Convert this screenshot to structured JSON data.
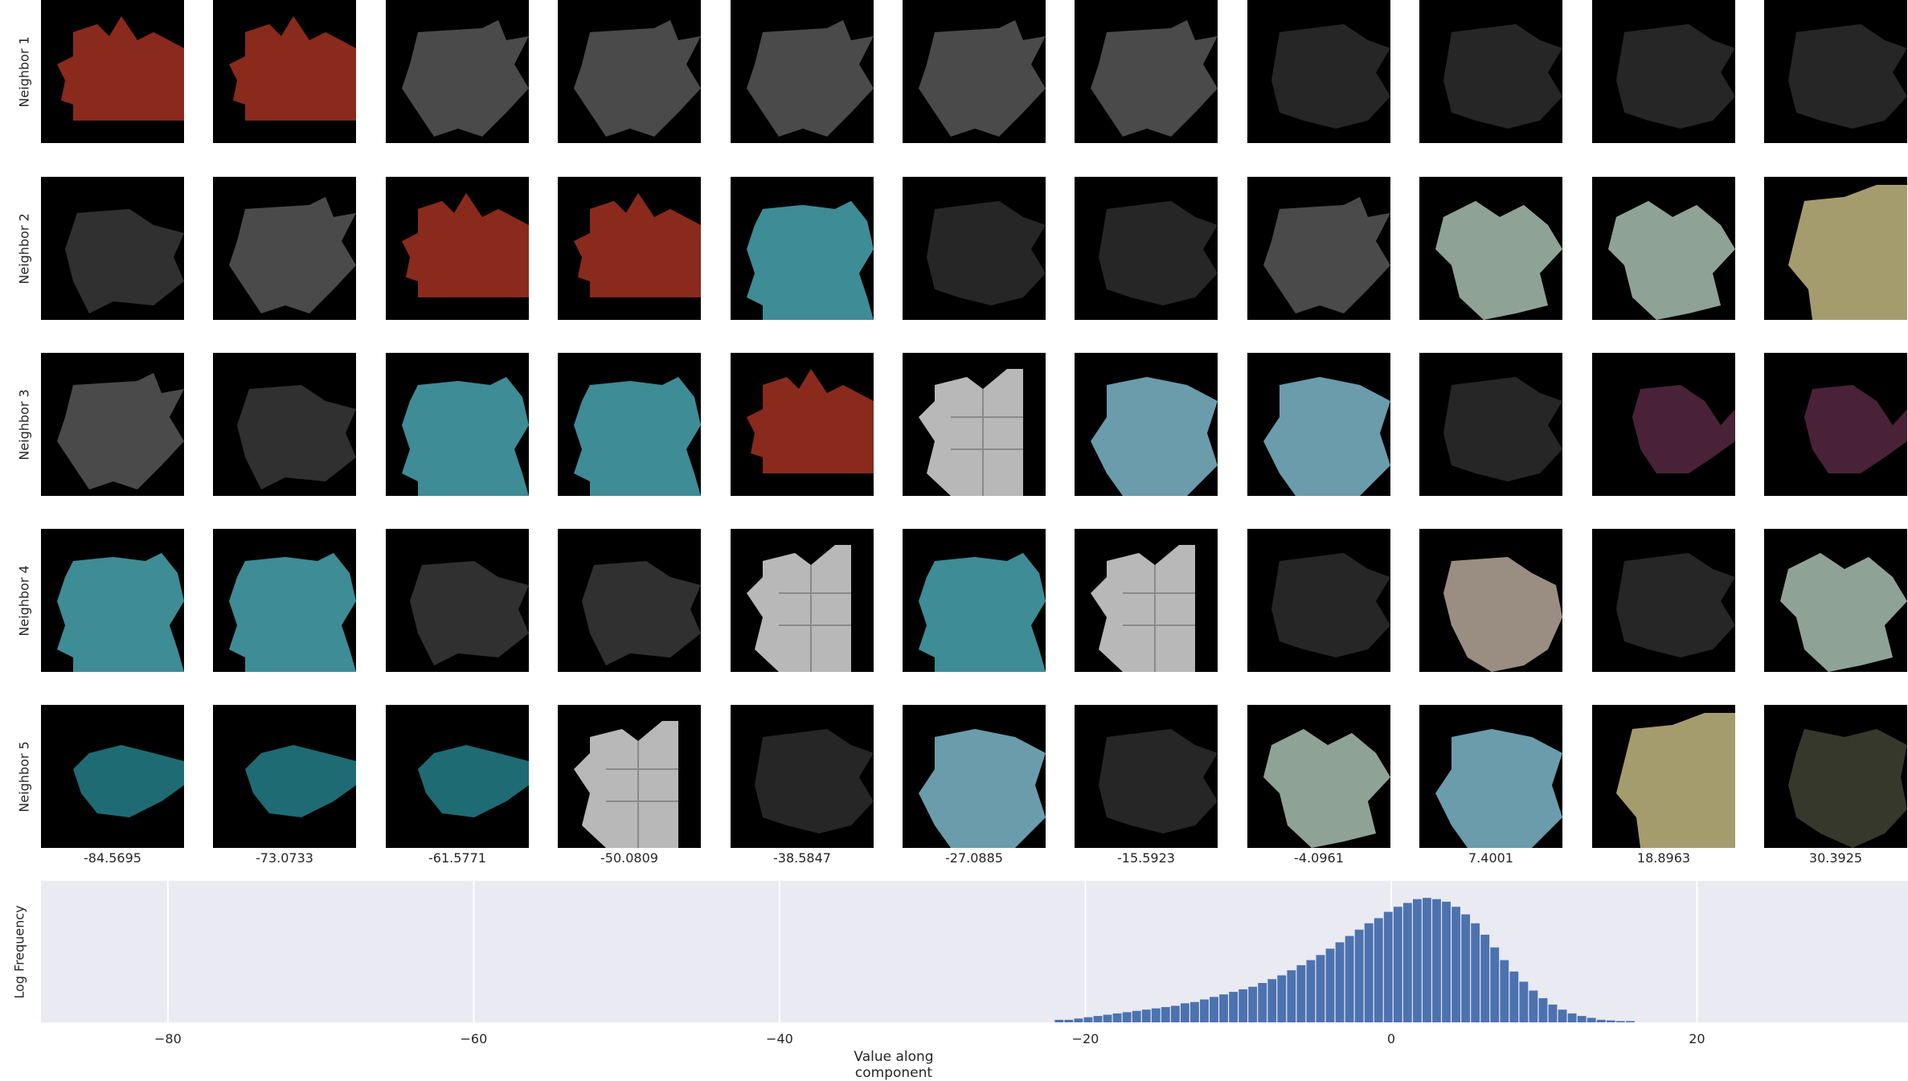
{
  "grid": {
    "row_labels": [
      "Neighbor 1",
      "Neighbor 2",
      "Neighbor 3",
      "Neighbor 4",
      "Neighbor 5"
    ],
    "column_values": [
      "-84.5695",
      "-73.0733",
      "-61.5771",
      "-50.0809",
      "-38.5847",
      "-27.0885",
      "-15.5923",
      "-4.0961",
      "7.4001",
      "18.8963",
      "30.3925"
    ],
    "tiles": [
      [
        "red-cloth",
        "red-cloth",
        "gray-stone",
        "gray-stone",
        "gray-stone",
        "gray-stone",
        "gray-stone",
        "dark-blob",
        "dark-blob",
        "dark-blob",
        "dark-blob"
      ],
      [
        "dark-gray",
        "gray-stone",
        "red-cloth",
        "red-cloth",
        "teal-blob",
        "dark-blob",
        "dark-blob",
        "gray-stone",
        "sage-blob",
        "sage-blob",
        "olive-patch"
      ],
      [
        "gray-stone",
        "dark-gray",
        "teal-blob",
        "teal-blob",
        "red-cloth",
        "white-tile",
        "steel-blue",
        "steel-blue",
        "dark-blob",
        "purple-blob",
        "purple-blob"
      ],
      [
        "teal-blob",
        "teal-blob",
        "dark-gray",
        "dark-gray",
        "white-tile",
        "teal-blob",
        "white-tile",
        "dark-blob",
        "beige-blob",
        "dark-blob",
        "sage-blob"
      ],
      [
        "deep-teal",
        "deep-teal",
        "deep-teal",
        "white-tile",
        "dark-blob",
        "steel-blue",
        "dark-blob",
        "sage-blob",
        "steel-blue",
        "olive-patch",
        "dark-olive"
      ]
    ],
    "tile_colors": {
      "red-cloth": "#8a2a1c",
      "gray-stone": "#4a4a4a",
      "dark-blob": "#262626",
      "dark-gray": "#303030",
      "teal-blob": "#3e8c95",
      "sage-blob": "#8ea396",
      "olive-patch": "#a59c6e",
      "white-tile": "#b8b8b8",
      "steel-blue": "#6a9cab",
      "purple-blob": "#4a2238",
      "beige-blob": "#9a8e82",
      "deep-teal": "#1e6b74",
      "dark-olive": "#36382c"
    }
  },
  "chart_data": {
    "type": "bar",
    "title": "",
    "xlabel": "Value along component",
    "ylabel": "Log Frequency",
    "xlim": [
      -88.3,
      33.8
    ],
    "x_ticks": [
      -80,
      -60,
      -40,
      -20,
      0,
      20
    ],
    "x_tick_labels": [
      "−80",
      "−60",
      "−40",
      "−20",
      "0",
      "20"
    ],
    "grid": true,
    "bar_color": "#4c72b0",
    "bin_start": -22.0,
    "bin_width": 0.633,
    "bin_heights": [
      0.02,
      0.02,
      0.03,
      0.04,
      0.05,
      0.06,
      0.07,
      0.08,
      0.09,
      0.1,
      0.11,
      0.12,
      0.13,
      0.15,
      0.16,
      0.18,
      0.2,
      0.22,
      0.24,
      0.26,
      0.28,
      0.31,
      0.34,
      0.37,
      0.41,
      0.45,
      0.49,
      0.53,
      0.58,
      0.63,
      0.68,
      0.73,
      0.78,
      0.82,
      0.87,
      0.91,
      0.94,
      0.97,
      0.98,
      0.97,
      0.95,
      0.91,
      0.85,
      0.78,
      0.69,
      0.59,
      0.49,
      0.4,
      0.32,
      0.25,
      0.19,
      0.14,
      0.1,
      0.07,
      0.05,
      0.035,
      0.02,
      0.015,
      0.01,
      0.01
    ]
  }
}
